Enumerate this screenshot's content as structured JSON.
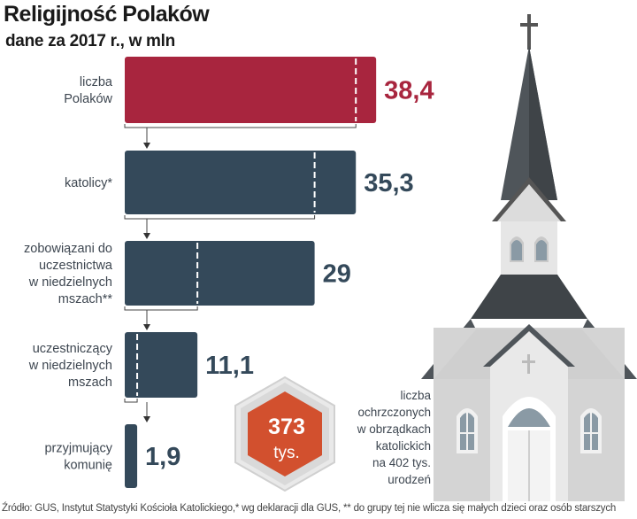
{
  "chart_data": {
    "type": "bar",
    "title": "Religijność Polaków",
    "subtitle": "dane za 2017 r., w mln",
    "categories": [
      [
        "liczba",
        "Polaków"
      ],
      [
        "katolicy*"
      ],
      [
        "zobowiązani do",
        "uczestnictwa",
        "w niedzielnych",
        "mszach**"
      ],
      [
        "uczestniczący",
        "w niedzielnych",
        "mszach"
      ],
      [
        "przyjmujący",
        "komunię"
      ]
    ],
    "values": [
      38.4,
      35.3,
      29,
      11.1,
      1.9
    ],
    "value_labels": [
      "38,4",
      "35,3",
      "29",
      "11,1",
      "1,9"
    ],
    "highlight_color": "#a8253e",
    "bar_color": "#34495a",
    "badge": {
      "value": "373",
      "unit": "tys.",
      "color": "#d2502e",
      "note": [
        "liczba",
        "ochrzczonych",
        "w obrządkach",
        "katolickich",
        "na 402 tys.",
        "urodzeń"
      ]
    }
  },
  "source": "Źródło: GUS, Instytut Statystyki Kościoła Katolickiego,* wg deklaracji dla GUS, ** do grupy tej nie wlicza się małych dzieci oraz osób starszych"
}
